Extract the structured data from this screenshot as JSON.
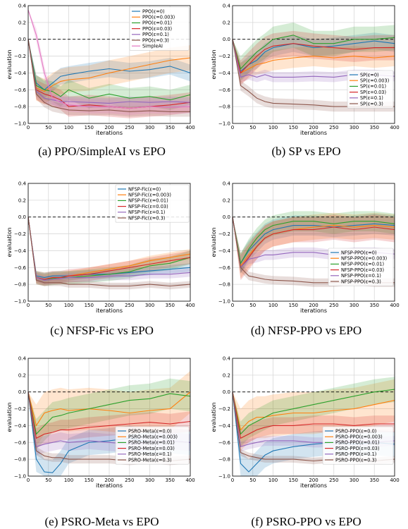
{
  "captions": [
    "(a) PPO/SimpleAI vs EPO",
    "(b) SP vs EPO",
    "(c) NFSP-Fic vs EPO",
    "(d) NFSP-PPO vs EPO",
    "(e) PSRO-Meta vs EPO",
    "(f) PSRO-PPO vs EPO"
  ],
  "colors": [
    "#1f77b4",
    "#ff7f0e",
    "#2ca02c",
    "#d62728",
    "#9467bd",
    "#8c564b",
    "#e377c2"
  ],
  "chart_data": [
    {
      "type": "line",
      "xlabel": "iterations",
      "ylabel": "evaluation",
      "xlim": [
        0,
        400
      ],
      "ylim": [
        -1.0,
        0.4
      ],
      "xticks": [
        0,
        50,
        100,
        150,
        200,
        250,
        300,
        350,
        400
      ],
      "yticks": [
        -1.0,
        -0.8,
        -0.6,
        -0.4,
        -0.2,
        0.0,
        0.2,
        0.4
      ],
      "grid": true,
      "baseline": 0.0,
      "legend_position": "top-right",
      "x": [
        0,
        20,
        40,
        60,
        80,
        100,
        150,
        200,
        250,
        300,
        350,
        400
      ],
      "series": [
        {
          "name": "PPO(ε=0)",
          "values": [
            0.0,
            -0.52,
            -0.6,
            -0.52,
            -0.44,
            -0.42,
            -0.38,
            -0.35,
            -0.38,
            -0.36,
            -0.32,
            -0.4
          ]
        },
        {
          "name": "PPO(ε=0.003)",
          "values": [
            0.0,
            -0.58,
            -0.62,
            -0.55,
            -0.5,
            -0.48,
            -0.46,
            -0.4,
            -0.35,
            -0.3,
            -0.25,
            -0.22
          ]
        },
        {
          "name": "PPO(ε=0.01)",
          "values": [
            0.0,
            -0.55,
            -0.6,
            -0.62,
            -0.68,
            -0.6,
            -0.7,
            -0.65,
            -0.7,
            -0.68,
            -0.72,
            -0.66
          ]
        },
        {
          "name": "PPO(ε=0.03)",
          "values": [
            0.0,
            -0.6,
            -0.65,
            -0.68,
            -0.72,
            -0.8,
            -0.78,
            -0.8,
            -0.82,
            -0.8,
            -0.78,
            -0.75
          ]
        },
        {
          "name": "PPO(ε=0.1)",
          "values": [
            0.0,
            -0.62,
            -0.7,
            -0.72,
            -0.74,
            -0.74,
            -0.75,
            -0.76,
            -0.74,
            -0.75,
            -0.74,
            -0.75
          ]
        },
        {
          "name": "PPO(ε=0.3)",
          "values": [
            0.0,
            -0.65,
            -0.75,
            -0.8,
            -0.82,
            -0.84,
            -0.85,
            -0.84,
            -0.86,
            -0.85,
            -0.86,
            -0.86
          ]
        },
        {
          "name": "SimpleAI",
          "values": [
            0.35,
            0.05,
            -0.4,
            -0.7,
            -0.75,
            -0.78,
            -0.8,
            -0.8,
            -0.82,
            -0.8,
            -0.81,
            -0.8
          ]
        }
      ]
    },
    {
      "type": "line",
      "xlabel": "iterations",
      "ylabel": "evaluation",
      "xlim": [
        0,
        400
      ],
      "ylim": [
        -1.0,
        0.4
      ],
      "xticks": [
        0,
        50,
        100,
        150,
        200,
        250,
        300,
        350,
        400
      ],
      "yticks": [
        -1.0,
        -0.8,
        -0.6,
        -0.4,
        -0.2,
        0.0,
        0.2,
        0.4
      ],
      "grid": true,
      "baseline": 0.0,
      "legend_position": "center-right",
      "x": [
        0,
        20,
        40,
        60,
        80,
        100,
        150,
        200,
        250,
        300,
        350,
        400
      ],
      "series": [
        {
          "name": "SP(ε=0)",
          "values": [
            0.0,
            -0.38,
            -0.3,
            -0.25,
            -0.15,
            -0.1,
            -0.05,
            -0.1,
            -0.08,
            -0.05,
            -0.02,
            -0.05
          ]
        },
        {
          "name": "SP(ε=0.003)",
          "values": [
            0.0,
            -0.4,
            -0.35,
            -0.3,
            -0.28,
            -0.25,
            -0.22,
            -0.2,
            -0.22,
            -0.2,
            -0.22,
            -0.2
          ]
        },
        {
          "name": "SP(ε=0.01)",
          "values": [
            0.0,
            -0.35,
            -0.25,
            -0.15,
            -0.08,
            0.0,
            0.05,
            -0.05,
            -0.05,
            0.0,
            0.0,
            0.02
          ]
        },
        {
          "name": "SP(ε=0.03)",
          "values": [
            0.0,
            -0.4,
            -0.3,
            -0.2,
            -0.12,
            -0.08,
            -0.05,
            -0.08,
            -0.1,
            -0.12,
            -0.1,
            -0.1
          ]
        },
        {
          "name": "SP(ε=0.1)",
          "values": [
            0.0,
            -0.45,
            -0.42,
            -0.45,
            -0.42,
            -0.45,
            -0.45,
            -0.44,
            -0.45,
            -0.42,
            -0.42,
            -0.44
          ]
        },
        {
          "name": "SP(ε=0.3)",
          "values": [
            0.0,
            -0.55,
            -0.62,
            -0.7,
            -0.74,
            -0.76,
            -0.77,
            -0.78,
            -0.8,
            -0.8,
            -0.8,
            -0.8
          ]
        }
      ]
    },
    {
      "type": "line",
      "xlabel": "iterations",
      "ylabel": "evaluation",
      "xlim": [
        0,
        400
      ],
      "ylim": [
        -1.0,
        0.4
      ],
      "xticks": [
        0,
        50,
        100,
        150,
        200,
        250,
        300,
        350,
        400
      ],
      "yticks": [
        -1.0,
        -0.8,
        -0.6,
        -0.4,
        -0.2,
        0.0,
        0.2,
        0.4
      ],
      "grid": true,
      "baseline": 0.0,
      "legend_position": "top-right",
      "x": [
        0,
        20,
        40,
        60,
        80,
        100,
        150,
        200,
        250,
        300,
        350,
        400
      ],
      "series": [
        {
          "name": "NFSP-Fic(ε=0)",
          "values": [
            0.0,
            -0.7,
            -0.72,
            -0.7,
            -0.7,
            -0.7,
            -0.68,
            -0.68,
            -0.66,
            -0.64,
            -0.62,
            -0.6
          ]
        },
        {
          "name": "NFSP-Fic(ε=0.003)",
          "values": [
            0.0,
            -0.72,
            -0.74,
            -0.72,
            -0.72,
            -0.7,
            -0.66,
            -0.62,
            -0.58,
            -0.52,
            -0.48,
            -0.44
          ]
        },
        {
          "name": "NFSP-Fic(ε=0.01)",
          "values": [
            0.0,
            -0.72,
            -0.74,
            -0.73,
            -0.72,
            -0.72,
            -0.7,
            -0.68,
            -0.65,
            -0.58,
            -0.55,
            -0.48
          ]
        },
        {
          "name": "NFSP-Fic(ε=0.03)",
          "values": [
            0.0,
            -0.72,
            -0.74,
            -0.72,
            -0.72,
            -0.7,
            -0.68,
            -0.64,
            -0.6,
            -0.56,
            -0.52,
            -0.48
          ]
        },
        {
          "name": "NFSP-Fic(ε=0.1)",
          "values": [
            0.0,
            -0.72,
            -0.75,
            -0.74,
            -0.73,
            -0.72,
            -0.72,
            -0.7,
            -0.7,
            -0.68,
            -0.68,
            -0.66
          ]
        },
        {
          "name": "NFSP-Fic(ε=0.3)",
          "values": [
            0.0,
            -0.75,
            -0.78,
            -0.78,
            -0.78,
            -0.8,
            -0.8,
            -0.82,
            -0.82,
            -0.8,
            -0.82,
            -0.8
          ]
        }
      ]
    },
    {
      "type": "line",
      "xlabel": "iterations",
      "ylabel": "evaluation",
      "xlim": [
        0,
        400
      ],
      "ylim": [
        -1.0,
        0.4
      ],
      "xticks": [
        0,
        50,
        100,
        150,
        200,
        250,
        300,
        350,
        400
      ],
      "yticks": [
        -1.0,
        -0.8,
        -0.6,
        -0.4,
        -0.2,
        0.0,
        0.2,
        0.4
      ],
      "grid": true,
      "baseline": 0.0,
      "legend_position": "lower-right",
      "x": [
        0,
        20,
        40,
        60,
        80,
        100,
        150,
        200,
        250,
        300,
        350,
        400
      ],
      "series": [
        {
          "name": "NFSP-PPO(ε=0)",
          "values": [
            0.0,
            -0.55,
            -0.4,
            -0.3,
            -0.2,
            -0.15,
            -0.1,
            -0.1,
            -0.12,
            -0.1,
            -0.08,
            -0.1
          ]
        },
        {
          "name": "NFSP-PPO(ε=0.003)",
          "values": [
            0.0,
            -0.58,
            -0.45,
            -0.35,
            -0.25,
            -0.2,
            -0.15,
            -0.12,
            -0.1,
            -0.12,
            -0.1,
            -0.12
          ]
        },
        {
          "name": "NFSP-PPO(ε=0.01)",
          "values": [
            0.0,
            -0.55,
            -0.38,
            -0.25,
            -0.15,
            -0.1,
            -0.05,
            -0.05,
            -0.08,
            -0.05,
            -0.05,
            -0.08
          ]
        },
        {
          "name": "NFSP-PPO(ε=0.03)",
          "values": [
            0.0,
            -0.6,
            -0.48,
            -0.35,
            -0.25,
            -0.2,
            -0.15,
            -0.15,
            -0.12,
            -0.15,
            -0.12,
            -0.15
          ]
        },
        {
          "name": "NFSP-PPO(ε=0.1)",
          "values": [
            0.0,
            -0.6,
            -0.5,
            -0.48,
            -0.45,
            -0.45,
            -0.42,
            -0.42,
            -0.45,
            -0.42,
            -0.42,
            -0.44
          ]
        },
        {
          "name": "NFSP-PPO(ε=0.3)",
          "values": [
            0.0,
            -0.6,
            -0.7,
            -0.72,
            -0.74,
            -0.75,
            -0.76,
            -0.78,
            -0.78,
            -0.76,
            -0.78,
            -0.78
          ]
        }
      ]
    },
    {
      "type": "line",
      "xlabel": "iterations",
      "ylabel": "evaluation",
      "xlim": [
        0,
        400
      ],
      "ylim": [
        -1.0,
        0.4
      ],
      "xticks": [
        0,
        50,
        100,
        150,
        200,
        250,
        300,
        350,
        400
      ],
      "yticks": [
        -1.0,
        -0.8,
        -0.6,
        -0.4,
        -0.2,
        0.0,
        0.2,
        0.4
      ],
      "grid": true,
      "baseline": 0.0,
      "legend_position": "lower-right",
      "x": [
        0,
        20,
        40,
        60,
        80,
        100,
        150,
        200,
        250,
        300,
        350,
        400
      ],
      "series": [
        {
          "name": "PSRO-Meta(ε=0.0)",
          "values": [
            0.0,
            -0.8,
            -0.95,
            -0.96,
            -0.85,
            -0.7,
            -0.6,
            -0.58,
            -0.55,
            -0.6,
            -0.58,
            -0.6
          ]
        },
        {
          "name": "PSRO-Meta(ε=0.003)",
          "values": [
            0.0,
            -0.4,
            -0.25,
            -0.22,
            -0.2,
            -0.22,
            -0.2,
            -0.22,
            -0.25,
            -0.22,
            -0.2,
            0.0
          ]
        },
        {
          "name": "PSRO-Meta(ε=0.01)",
          "values": [
            0.0,
            -0.5,
            -0.4,
            -0.3,
            -0.28,
            -0.25,
            -0.2,
            -0.15,
            -0.1,
            -0.08,
            -0.02,
            -0.05
          ]
        },
        {
          "name": "PSRO-Meta(ε=0.03)",
          "values": [
            0.0,
            -0.55,
            -0.5,
            -0.48,
            -0.45,
            -0.45,
            -0.42,
            -0.4,
            -0.38,
            -0.36,
            -0.38,
            -0.35
          ]
        },
        {
          "name": "PSRO-Meta(ε=0.1)",
          "values": [
            0.0,
            -0.65,
            -0.62,
            -0.6,
            -0.58,
            -0.6,
            -0.58,
            -0.6,
            -0.62,
            -0.6,
            -0.58,
            -0.6
          ]
        },
        {
          "name": "PSRO-Meta(ε=0.3)",
          "values": [
            0.0,
            -0.7,
            -0.76,
            -0.78,
            -0.78,
            -0.8,
            -0.8,
            -0.8,
            -0.82,
            -0.8,
            -0.82,
            -0.8
          ]
        }
      ]
    },
    {
      "type": "line",
      "xlabel": "iterations",
      "ylabel": "evaluation",
      "xlim": [
        0,
        400
      ],
      "ylim": [
        -1.0,
        0.4
      ],
      "xticks": [
        0,
        50,
        100,
        150,
        200,
        250,
        300,
        350,
        400
      ],
      "yticks": [
        -1.0,
        -0.8,
        -0.6,
        -0.4,
        -0.2,
        0.0,
        0.2,
        0.4
      ],
      "grid": true,
      "baseline": 0.0,
      "legend_position": "lower-right",
      "x": [
        0,
        20,
        40,
        60,
        80,
        100,
        150,
        200,
        250,
        300,
        350,
        400
      ],
      "series": [
        {
          "name": "PSRO-PPO(ε=0.0)",
          "values": [
            0.0,
            -0.85,
            -0.95,
            -0.85,
            -0.75,
            -0.7,
            -0.65,
            -0.62,
            -0.6,
            -0.62,
            -0.6,
            -0.62
          ]
        },
        {
          "name": "PSRO-PPO(ε=0.003)",
          "values": [
            0.0,
            -0.45,
            -0.35,
            -0.3,
            -0.3,
            -0.28,
            -0.25,
            -0.25,
            -0.22,
            -0.2,
            -0.15,
            -0.1
          ]
        },
        {
          "name": "PSRO-PPO(ε=0.01)",
          "values": [
            0.0,
            -0.5,
            -0.4,
            -0.35,
            -0.3,
            -0.25,
            -0.2,
            -0.15,
            -0.1,
            -0.05,
            0.0,
            0.03
          ]
        },
        {
          "name": "PSRO-PPO(ε=0.03)",
          "values": [
            0.0,
            -0.55,
            -0.5,
            -0.45,
            -0.42,
            -0.4,
            -0.4,
            -0.38,
            -0.38,
            -0.4,
            -0.38,
            -0.38
          ]
        },
        {
          "name": "PSRO-PPO(ε=0.1)",
          "values": [
            0.0,
            -0.65,
            -0.62,
            -0.6,
            -0.58,
            -0.58,
            -0.58,
            -0.6,
            -0.6,
            -0.58,
            -0.6,
            -0.58
          ]
        },
        {
          "name": "PSRO-PPO(ε=0.3)",
          "values": [
            0.0,
            -0.72,
            -0.76,
            -0.78,
            -0.8,
            -0.8,
            -0.8,
            -0.82,
            -0.8,
            -0.8,
            -0.82,
            -0.8
          ]
        }
      ]
    }
  ]
}
